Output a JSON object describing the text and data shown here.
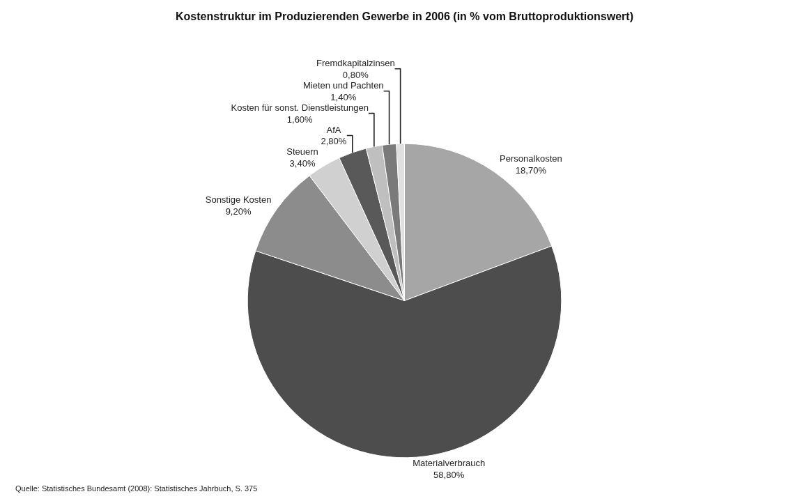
{
  "chart_data": {
    "type": "pie",
    "title": "Kostenstruktur im Produzierenden Gewerbe in 2006 (in % vom Bruttoproduktionswert)",
    "categories": [
      "Personalkosten",
      "Materialverbrauch",
      "Sonstige Kosten",
      "Steuern",
      "AfA",
      "Kosten für sonst. Dienstleistungen",
      "Mieten und Pachten",
      "Fremdkapitalzinsen"
    ],
    "values": [
      18.7,
      58.8,
      9.2,
      3.4,
      2.8,
      1.6,
      1.4,
      0.8
    ],
    "value_labels": [
      "18,70%",
      "58,80%",
      "9,20%",
      "3,40%",
      "2,80%",
      "1,60%",
      "1,40%",
      "0,80%"
    ],
    "colors": [
      "#a6a6a6",
      "#4d4d4d",
      "#8c8c8c",
      "#d0d0d0",
      "#595959",
      "#bfbfbf",
      "#7a7a7a",
      "#e0e0e0"
    ],
    "annotations": [
      "Quelle: Statistisches Bundesamt (2008): Statistisches Jahrbuch, S. 375"
    ]
  }
}
